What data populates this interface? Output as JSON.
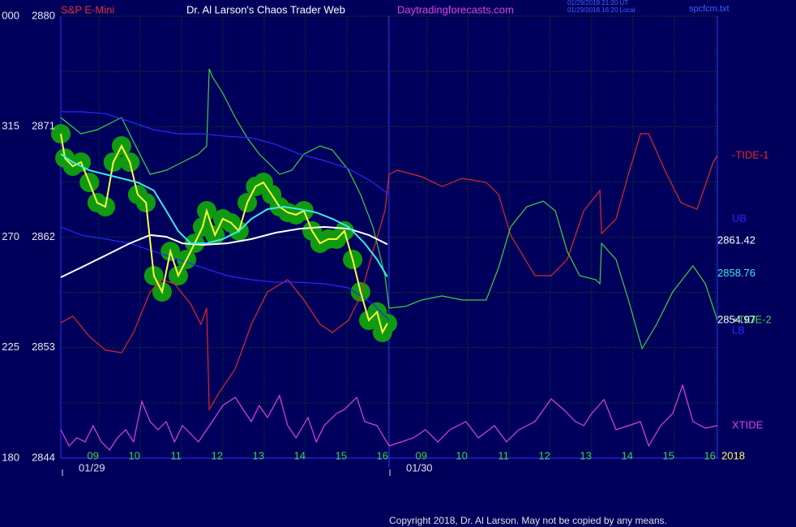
{
  "chart_data": {
    "type": "line",
    "symbol": "S&P E-Mini",
    "title": "Dr. Al Larson's Chaos Trader Web",
    "website": "Daytradingforecasts.com",
    "timestamps": [
      "01/29/2018 21:20 UT",
      "01/29/2018 16:20 Local"
    ],
    "file": "spcfcm.txt",
    "year": "2018",
    "copyright": "Copyright 2018, Dr. Al Larson. May not be copied by any means.",
    "xlim": [
      8.08,
      24.0
    ],
    "xticks": [
      {
        "value": 9,
        "label": "09"
      },
      10,
      11,
      12,
      13,
      14,
      15,
      16,
      {
        "value": 16.94,
        "label": "09"
      },
      {
        "value": 17.92,
        "label": "10"
      },
      {
        "value": 18.92,
        "label": "11"
      },
      {
        "value": 19.92,
        "label": "12"
      },
      {
        "value": 20.92,
        "label": "13"
      },
      {
        "value": 21.92,
        "label": "14"
      },
      {
        "value": 22.92,
        "label": "15"
      },
      {
        "value": 23.92,
        "label": "16"
      }
    ],
    "ylim": [
      2844,
      2880
    ],
    "yticks": [
      2844,
      2853,
      2862,
      2871,
      2880
    ],
    "y2lim": [
      180,
      360
    ],
    "y2ticks": [
      180,
      225,
      270,
      315,
      {
        "value": 360,
        "label": "000"
      }
    ],
    "grid": true,
    "annotations": [
      {
        "text": "01/29",
        "x": 8.12
      },
      {
        "text": "01/30",
        "x": 16.04
      }
    ],
    "series": [
      {
        "name": "XTIDE",
        "color": "#e040e0",
        "x": [
          8.08,
          8.28,
          8.47,
          8.67,
          8.86,
          9.06,
          9.26,
          9.45,
          9.65,
          9.84,
          10.04,
          10.24,
          10.43,
          10.63,
          10.83,
          11.02,
          11.22,
          11.41,
          11.61,
          11.81,
          12.0,
          12.3,
          12.49,
          12.69,
          12.88,
          13.08,
          13.37,
          13.57,
          13.77,
          14.06,
          14.26,
          14.45,
          14.75,
          14.94,
          15.24,
          15.43,
          15.73,
          16.02,
          16.32,
          16.61,
          16.9,
          17.2,
          17.49,
          17.88,
          18.18,
          18.57,
          18.86,
          19.16,
          19.55,
          19.94,
          20.24,
          20.53,
          20.73,
          20.92,
          21.22,
          21.51,
          21.81,
          22.1,
          22.3,
          22.59,
          22.88,
          23.12,
          23.37,
          23.67,
          23.96
        ],
        "values": [
          2846.31,
          2844.99,
          2845.65,
          2845.32,
          2846.64,
          2845.32,
          2844.66,
          2845.65,
          2846.31,
          2845.32,
          2848.62,
          2846.97,
          2846.31,
          2846.97,
          2845.32,
          2846.64,
          2845.98,
          2845.32,
          2846.31,
          2847.3,
          2848.29,
          2848.95,
          2847.96,
          2846.97,
          2848.29,
          2847.3,
          2849.09,
          2846.64,
          2845.65,
          2847.3,
          2845.32,
          2846.64,
          2847.63,
          2847.96,
          2848.95,
          2846.97,
          2846.64,
          2844.99,
          2845.32,
          2845.65,
          2846.31,
          2845.32,
          2846.31,
          2846.97,
          2845.65,
          2846.64,
          2845.32,
          2846.31,
          2846.97,
          2848.82,
          2847.96,
          2846.97,
          2846.64,
          2847.63,
          2848.76,
          2846.31,
          2846.64,
          2846.97,
          2844.99,
          2846.64,
          2847.63,
          2849.94,
          2846.97,
          2846.44,
          2846.64
        ]
      },
      {
        "name": "-TIDE-1",
        "color": "#e02828",
        "x": [
          8.08,
          8.37,
          8.77,
          9.16,
          9.55,
          9.84,
          10.24,
          10.53,
          10.83,
          11.22,
          11.47,
          11.61,
          11.67,
          11.9,
          12.3,
          12.69,
          13.08,
          13.57,
          13.96,
          14.35,
          14.65,
          15.04,
          15.33,
          15.63,
          15.92,
          16.02,
          16.22,
          16.81,
          17.3,
          17.79,
          18.37,
          18.67,
          18.96,
          19.55,
          19.94,
          20.33,
          20.73,
          21.12,
          21.16,
          21.51,
          21.81,
          22.1,
          22.3,
          22.69,
          23.08,
          23.47,
          23.86,
          23.96
        ],
        "values": [
          2855.03,
          2855.56,
          2853.91,
          2852.79,
          2852.59,
          2854.24,
          2857.54,
          2858.53,
          2858.2,
          2856.55,
          2854.9,
          2856.22,
          2847.96,
          2849.28,
          2851.27,
          2854.9,
          2857.54,
          2858.53,
          2856.88,
          2854.9,
          2854.24,
          2855.23,
          2857.21,
          2860.84,
          2864.15,
          2867.12,
          2867.45,
          2866.92,
          2866.13,
          2866.79,
          2866.46,
          2865.47,
          2862.17,
          2858.86,
          2858.86,
          2860.18,
          2864.15,
          2865.8,
          2862.3,
          2863.49,
          2867.12,
          2870.42,
          2870.42,
          2867.45,
          2864.81,
          2864.28,
          2868.11,
          2868.64
        ]
      },
      {
        "name": "+TIDE-2",
        "color": "#40d040",
        "x": [
          8.08,
          8.57,
          8.96,
          9.35,
          9.55,
          9.84,
          10.24,
          10.63,
          11.02,
          11.41,
          11.61,
          11.67,
          11.75,
          12.0,
          12.3,
          12.59,
          12.88,
          13.18,
          13.37,
          13.67,
          13.96,
          14.35,
          14.65,
          15.04,
          15.33,
          15.63,
          15.92,
          16.02,
          16.41,
          16.81,
          17.3,
          17.79,
          18.37,
          18.67,
          18.96,
          19.35,
          19.75,
          20.04,
          20.33,
          20.63,
          21.02,
          21.12,
          21.16,
          21.51,
          21.81,
          22.14,
          22.49,
          22.88,
          23.37,
          23.67,
          23.96
        ],
        "values": [
          2871.74,
          2870.42,
          2870.75,
          2871.41,
          2871.74,
          2869.76,
          2867.12,
          2867.45,
          2868.11,
          2868.77,
          2869.43,
          2875.71,
          2875.05,
          2873.72,
          2871.74,
          2870.09,
          2868.77,
          2867.78,
          2867.12,
          2867.45,
          2868.77,
          2869.43,
          2869.1,
          2867.45,
          2865.47,
          2862.83,
          2858.86,
          2856.22,
          2856.35,
          2856.88,
          2857.21,
          2856.88,
          2856.88,
          2859.52,
          2862.83,
          2864.48,
          2864.94,
          2864.15,
          2860.84,
          2858.86,
          2858.53,
          2858.2,
          2861.5,
          2860.18,
          2856.88,
          2852.92,
          2854.9,
          2857.54,
          2859.66,
          2858.2,
          2855.23
        ]
      },
      {
        "name": "UB",
        "color": "#2828ff",
        "x": [
          8.08,
          8.57,
          9.16,
          9.75,
          10.33,
          10.92,
          11.51,
          12.1,
          12.69,
          13.28,
          13.86,
          14.45,
          15.04,
          15.63,
          16.02
        ],
        "values": [
          2872.21,
          2872.21,
          2872.07,
          2871.41,
          2870.75,
          2870.42,
          2870.42,
          2870.22,
          2870.09,
          2869.56,
          2868.77,
          2868.24,
          2867.58,
          2866.46,
          2865.47
        ]
      },
      {
        "name": "LB",
        "color": "#2828ff",
        "x": [
          8.08,
          8.57,
          9.16,
          9.75,
          10.33,
          10.92,
          11.51,
          12.1,
          12.69,
          13.28,
          13.86,
          14.45,
          15.04,
          15.63,
          16.02
        ],
        "values": [
          2862.83,
          2862.17,
          2861.84,
          2861.5,
          2860.84,
          2860.18,
          2859.52,
          2858.86,
          2858.53,
          2858.33,
          2858.33,
          2858.2,
          2857.87,
          2856.55,
          2855.23
        ]
      },
      {
        "color": "#ffffff",
        "end_label": "2861.42",
        "x": [
          8.08,
          8.57,
          9.16,
          9.75,
          10.24,
          10.63,
          11.02,
          11.51,
          12.1,
          12.69,
          13.28,
          13.86,
          14.45,
          15.04,
          15.53,
          15.98
        ],
        "values": [
          2858.73,
          2859.52,
          2860.51,
          2861.5,
          2862.17,
          2862.03,
          2861.5,
          2861.37,
          2861.5,
          2861.84,
          2862.36,
          2862.69,
          2862.83,
          2862.69,
          2862.17,
          2861.42
        ]
      },
      {
        "color": "#ffff40",
        "end_label": "2854.97",
        "marker_color": "#109a10",
        "x": [
          8.08,
          8.18,
          8.37,
          8.57,
          8.77,
          8.96,
          9.16,
          9.35,
          9.55,
          9.75,
          9.94,
          10.14,
          10.33,
          10.53,
          10.73,
          10.92,
          11.12,
          11.32,
          11.51,
          11.61,
          11.81,
          12.0,
          12.2,
          12.39,
          12.59,
          12.79,
          12.98,
          13.18,
          13.37,
          13.57,
          13.77,
          13.96,
          14.16,
          14.35,
          14.55,
          14.75,
          14.94,
          15.14,
          15.33,
          15.53,
          15.73,
          15.86,
          15.98
        ],
        "values": [
          2870.42,
          2868.44,
          2867.78,
          2868.11,
          2866.46,
          2864.81,
          2864.48,
          2868.11,
          2869.43,
          2868.11,
          2865.47,
          2864.81,
          2858.86,
          2857.54,
          2860.84,
          2858.86,
          2860.18,
          2861.5,
          2862.83,
          2864.15,
          2862.17,
          2863.49,
          2863.16,
          2862.5,
          2864.81,
          2866.13,
          2866.46,
          2865.47,
          2864.48,
          2864.01,
          2863.82,
          2864.15,
          2862.5,
          2861.5,
          2861.84,
          2861.84,
          2862.5,
          2860.18,
          2857.54,
          2855.23,
          2855.9,
          2854.24,
          2854.97
        ]
      },
      {
        "color": "#40e8e8",
        "end_label": "2858.76",
        "x": [
          8.08,
          8.37,
          8.77,
          9.16,
          9.55,
          9.94,
          10.33,
          10.63,
          10.92,
          11.22,
          11.61,
          12.0,
          12.39,
          12.69,
          13.08,
          13.47,
          13.86,
          14.26,
          14.65,
          15.04,
          15.43,
          15.73,
          15.98
        ],
        "values": [
          2868.77,
          2868.11,
          2867.45,
          2867.12,
          2866.79,
          2866.46,
          2865.8,
          2864.15,
          2862.5,
          2861.5,
          2861.5,
          2861.84,
          2862.5,
          2863.49,
          2864.28,
          2864.48,
          2864.28,
          2864.01,
          2863.49,
          2862.83,
          2861.5,
          2860.18,
          2858.76
        ]
      }
    ]
  }
}
